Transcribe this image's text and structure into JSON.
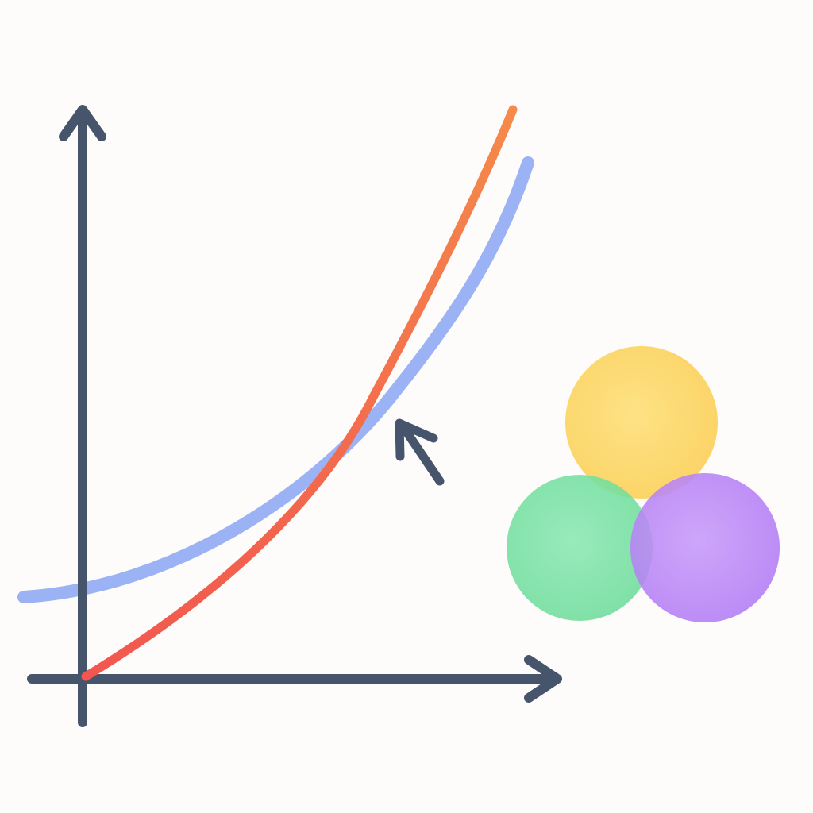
{
  "colors": {
    "background": "#fdfcfa",
    "axis": "#46556c",
    "curve_blue": "#8aa6f2",
    "curve_red_start": "#f2574f",
    "curve_red_end": "#f58a4a",
    "circle_yellow": "#fcd05a",
    "circle_green": "#6ddc9a",
    "circle_purple": "#b27bf5",
    "pointer": "#46556c"
  },
  "icons": {
    "pointer": "arrow-pointer-icon",
    "circles": "three-overlapping-circles-icon"
  },
  "curves": [
    {
      "name": "",
      "color_key": "curve_blue",
      "shape": "gentle-exponential"
    },
    {
      "name": "",
      "color_key": "curve_red",
      "shape": "steep-exponential"
    }
  ]
}
